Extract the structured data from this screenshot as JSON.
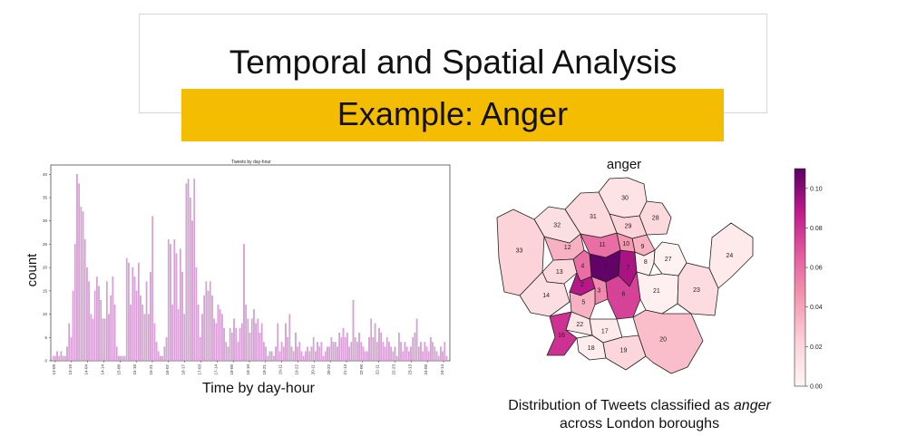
{
  "slide": {
    "title": "Temporal and Spatial Analysis",
    "subtitle": "Example: Anger",
    "left_caption": "Time by day-hour",
    "right_caption_line1_prefix": "Distribution of Tweets classified as ",
    "right_caption_emphasis": "anger",
    "right_caption_line2": "across London boroughs",
    "banner_color": "#f5bd02"
  },
  "chart_data": [
    {
      "type": "bar",
      "title": "Tweets by day-hour",
      "xlabel": "Time by day-hour",
      "ylabel": "count",
      "ylim": [
        0,
        42
      ],
      "yticks": [
        0,
        5,
        10,
        15,
        20,
        25,
        30,
        35,
        40
      ],
      "xtick_labels": [
        "13-09",
        "13-19",
        "14-04",
        "14-14",
        "15-00",
        "15-10",
        "15-21",
        "16-07",
        "16-17",
        "17-03",
        "17-14",
        "18-00",
        "18-10",
        "18-21",
        "19-11",
        "19-22",
        "20-11",
        "20-22",
        "21-13",
        "22-00",
        "22-11",
        "22-23",
        "23-13",
        "24-00",
        "24-14"
      ],
      "bar_color": "#dba6d9",
      "values": [
        1,
        1,
        2,
        1,
        2,
        1,
        1,
        3,
        8,
        5,
        15,
        25,
        40,
        38,
        33,
        32,
        26,
        20,
        17,
        10,
        9,
        15,
        18,
        16,
        13,
        9,
        9,
        17,
        10,
        14,
        18,
        12,
        3,
        1,
        1,
        1,
        1,
        22,
        21,
        12,
        20,
        18,
        15,
        21,
        14,
        12,
        10,
        17,
        10,
        19,
        31,
        8,
        4,
        2,
        1,
        1,
        3,
        5,
        26,
        25,
        12,
        26,
        23,
        11,
        24,
        19,
        10,
        38,
        39,
        35,
        30,
        39,
        20,
        12,
        5,
        10,
        14,
        17,
        15,
        17,
        14,
        9,
        8,
        12,
        11,
        10,
        7,
        4,
        3,
        7,
        6,
        9,
        7,
        4,
        7,
        8,
        25,
        12,
        9,
        6,
        9,
        11,
        8,
        9,
        6,
        8,
        4,
        3,
        1,
        2,
        2,
        1,
        3,
        8,
        2,
        4,
        3,
        8,
        5,
        10,
        3,
        2,
        6,
        3,
        4,
        2,
        1,
        2,
        3,
        2,
        3,
        5,
        2,
        4,
        3,
        4,
        1,
        2,
        3,
        3,
        5,
        4,
        4,
        3,
        6,
        5,
        7,
        5,
        6,
        3,
        4,
        13,
        5,
        4,
        6,
        4,
        3,
        2,
        2,
        5,
        9,
        5,
        8,
        4,
        7,
        6,
        4,
        3,
        5,
        4,
        3,
        2,
        3,
        1,
        6,
        4,
        2,
        4,
        3,
        2,
        3,
        5,
        6,
        9,
        3,
        4,
        2,
        4,
        3,
        2,
        5,
        4,
        3,
        2,
        1,
        3,
        2,
        4,
        1
      ]
    },
    {
      "type": "heatmap",
      "title": "anger",
      "colorbar_ticks": [
        0.0,
        0.02,
        0.04,
        0.06,
        0.08,
        0.1
      ],
      "colorbar_range": [
        0,
        0.11
      ],
      "colormap": [
        "#fff5f6",
        "#fbd3d8",
        "#f59ab2",
        "#e45d9f",
        "#c01a8b",
        "#5a0063"
      ],
      "regions": [
        {
          "label": "1",
          "value": 0.108
        },
        {
          "label": "2",
          "value": 0.09
        },
        {
          "label": "3",
          "value": 0.05
        },
        {
          "label": "4",
          "value": 0.06
        },
        {
          "label": "5",
          "value": 0.035
        },
        {
          "label": "6",
          "value": 0.075
        },
        {
          "label": "7",
          "value": 0.093
        },
        {
          "label": "8",
          "value": 0.004
        },
        {
          "label": "9",
          "value": 0.035
        },
        {
          "label": "10",
          "value": 0.045
        },
        {
          "label": "11",
          "value": 0.06
        },
        {
          "label": "12",
          "value": 0.035
        },
        {
          "label": "13",
          "value": 0.018
        },
        {
          "label": "14",
          "value": 0.015
        },
        {
          "label": "16",
          "value": 0.08
        },
        {
          "label": "17",
          "value": 0.008
        },
        {
          "label": "18",
          "value": 0.006
        },
        {
          "label": "19",
          "value": 0.02
        },
        {
          "label": "20",
          "value": 0.03
        },
        {
          "label": "21",
          "value": 0.004
        },
        {
          "label": "22",
          "value": 0.01
        },
        {
          "label": "23",
          "value": 0.016
        },
        {
          "label": "24",
          "value": 0.008
        },
        {
          "label": "27",
          "value": 0.002
        },
        {
          "label": "28",
          "value": 0.018
        },
        {
          "label": "29",
          "value": 0.022
        },
        {
          "label": "30",
          "value": 0.012
        },
        {
          "label": "31",
          "value": 0.018
        },
        {
          "label": "32",
          "value": 0.014
        },
        {
          "label": "33",
          "value": 0.022
        }
      ]
    }
  ]
}
